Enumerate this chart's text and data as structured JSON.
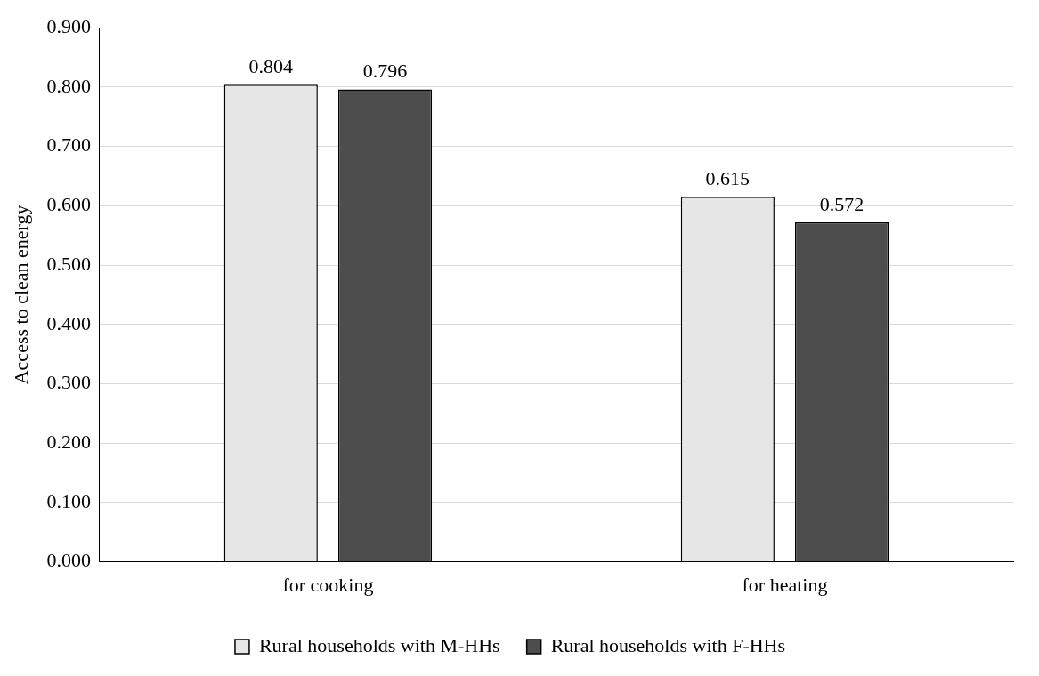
{
  "chart_data": {
    "type": "bar",
    "ylabel": "Access to clean energy",
    "categories": [
      "for cooking",
      "for heating"
    ],
    "series": [
      {
        "name": "Rural households with M-HHs",
        "color": "#e6e6e6",
        "values": [
          0.804,
          0.615
        ]
      },
      {
        "name": "Rural households with F-HHs",
        "color": "#4d4d4d",
        "values": [
          0.796,
          0.572
        ]
      }
    ],
    "ylim": [
      0,
      0.9
    ],
    "yticks": [
      {
        "value": 0,
        "label": "0.000"
      },
      {
        "value": 0.1,
        "label": "0.100"
      },
      {
        "value": 0.2,
        "label": "0.200"
      },
      {
        "value": 0.3,
        "label": "0.300"
      },
      {
        "value": 0.4,
        "label": "0.400"
      },
      {
        "value": 0.5,
        "label": "0.500"
      },
      {
        "value": 0.6,
        "label": "0.600"
      },
      {
        "value": 0.7,
        "label": "0.700"
      },
      {
        "value": 0.8,
        "label": "0.800"
      },
      {
        "value": 0.9,
        "label": "0.900"
      }
    ],
    "grid": "y",
    "legend": "bottom",
    "data_labels": true
  }
}
